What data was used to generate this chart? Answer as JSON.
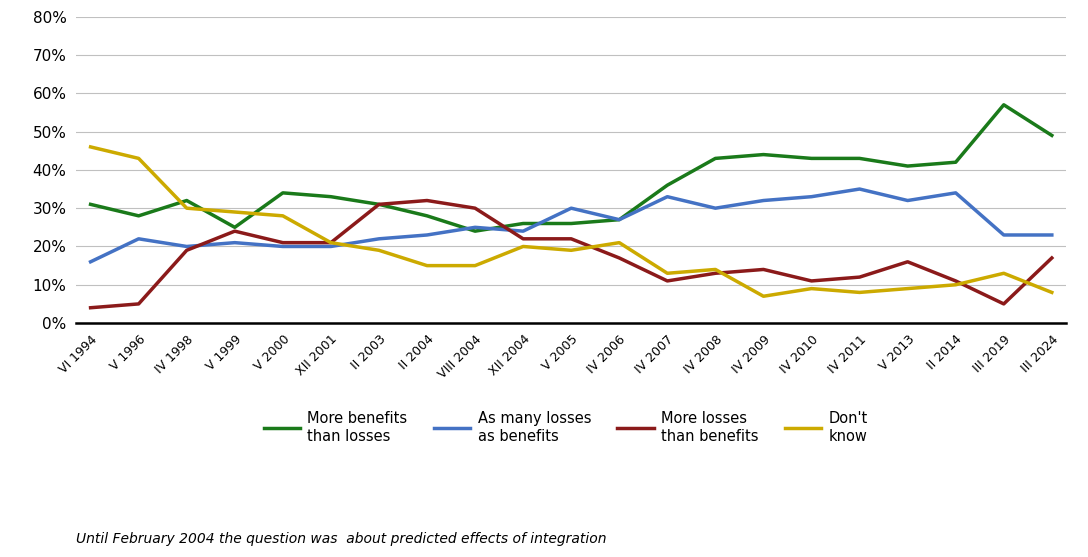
{
  "x_labels": [
    "VI 1994",
    "V 1996",
    "IV 1998",
    "V 1999",
    "V 2000",
    "XII 2001",
    "II 2003",
    "II 2004",
    "VIII 2004",
    "XII 2004",
    "V 2005",
    "IV 2006",
    "IV 2007",
    "IV 2008",
    "IV 2009",
    "IV 2010",
    "IV 2011",
    "V 2013",
    "II 2014",
    "III 2019",
    "III 2024"
  ],
  "more_benefits": [
    31,
    28,
    32,
    25,
    34,
    33,
    31,
    28,
    24,
    26,
    26,
    27,
    36,
    43,
    44,
    43,
    43,
    41,
    42,
    57,
    49
  ],
  "as_many_losses": [
    16,
    22,
    20,
    21,
    20,
    20,
    22,
    23,
    25,
    24,
    30,
    27,
    33,
    30,
    32,
    33,
    35,
    32,
    34,
    23,
    23
  ],
  "more_losses": [
    4,
    5,
    19,
    24,
    21,
    21,
    31,
    32,
    30,
    22,
    22,
    17,
    11,
    13,
    14,
    11,
    12,
    16,
    11,
    5,
    17
  ],
  "dont_know": [
    46,
    43,
    30,
    29,
    28,
    21,
    19,
    15,
    15,
    20,
    19,
    21,
    13,
    14,
    7,
    9,
    8,
    9,
    10,
    13,
    8
  ],
  "colors": {
    "more_benefits": "#1a7a1a",
    "as_many_losses": "#4472c4",
    "more_losses": "#8b1a1a",
    "dont_know": "#ccaa00"
  },
  "legend_labels": {
    "more_benefits": "More benefits\nthan losses",
    "as_many_losses": "As many losses\nas benefits",
    "more_losses": "More losses\nthan benefits",
    "dont_know": "Don't\nknow"
  },
  "yticks": [
    0,
    10,
    20,
    30,
    40,
    50,
    60,
    70,
    80
  ],
  "footnote": "Until February 2004 the question was  about predicted effects of integration",
  "background_color": "#ffffff",
  "grid_color": "#c0c0c0",
  "line_width": 2.5
}
